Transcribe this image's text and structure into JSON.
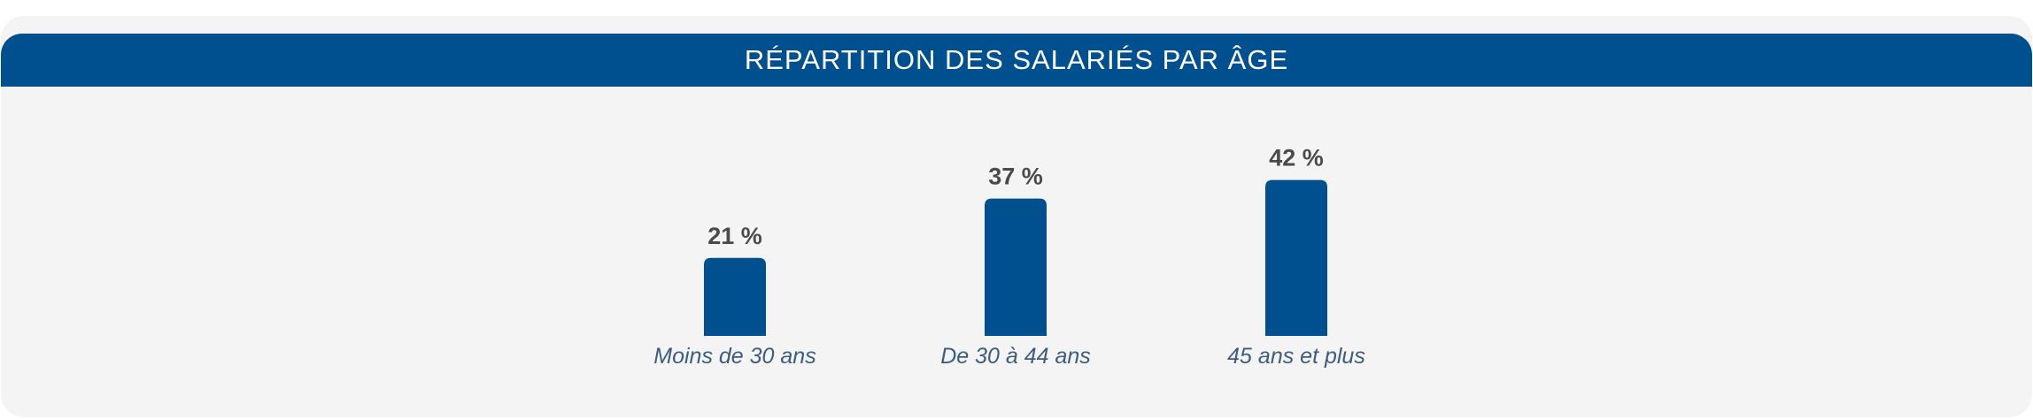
{
  "chart_data": {
    "type": "bar",
    "title": "RÉPARTITION DES SALARIÉS PAR ÂGE",
    "categories": [
      "Moins de 30 ans",
      "De 30 à 44 ans",
      "45 ans et plus"
    ],
    "values": [
      21,
      37,
      42
    ],
    "value_labels": [
      "21 %",
      "37 %",
      "42 %"
    ],
    "unit": "%",
    "xlabel": "",
    "ylabel": "",
    "grid": false,
    "bar_color": "#004f8f"
  },
  "colors": {
    "header": "#004f8f",
    "card_background": "#f4f4f4",
    "value_text": "#4a4a4a",
    "category_text": "#3d5c7f"
  }
}
